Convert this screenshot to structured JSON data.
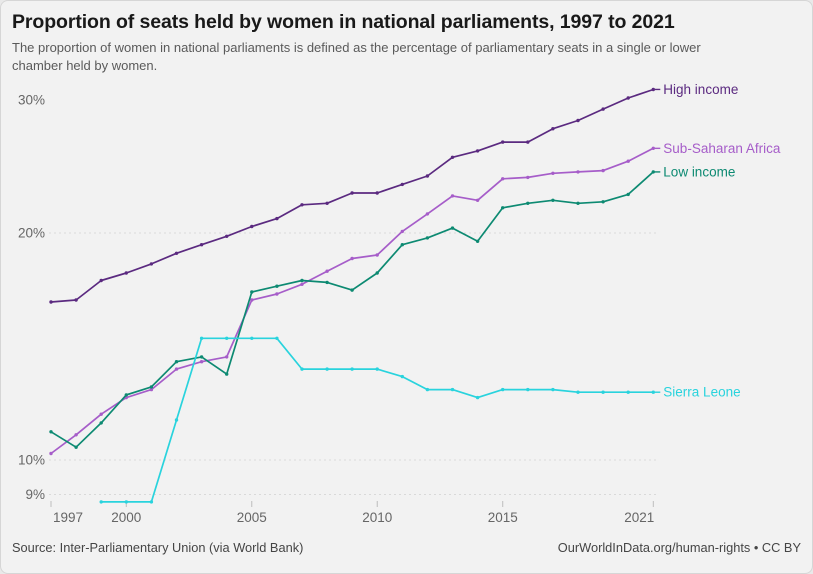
{
  "header": {
    "title": "Proportion of seats held by women in national parliaments, 1997 to 2021",
    "subtitle": "The proportion of women in national parliaments is defined as the percentage of parliamentary seats in a single or lower chamber held by women."
  },
  "footer": {
    "source": "Source: Inter-Parliamentary Union (via World Bank)",
    "attribution": "OurWorldInData.org/human-rights • CC BY"
  },
  "colors": {
    "high_income": "#5b2a80",
    "sub_saharan_africa": "#a65dc9",
    "low_income": "#0d8a72",
    "sierra_leone": "#29d3dd",
    "gridline": "#d9d9d9",
    "axis_text": "#666666",
    "tick_mark": "#bdbdbd"
  },
  "chart_data": {
    "type": "line",
    "title": "Proportion of seats held by women in national parliaments, 1997 to 2021",
    "x": [
      1997,
      1998,
      1999,
      2000,
      2001,
      2002,
      2003,
      2004,
      2005,
      2006,
      2007,
      2008,
      2009,
      2010,
      2011,
      2012,
      2013,
      2014,
      2015,
      2016,
      2017,
      2018,
      2019,
      2020,
      2021
    ],
    "series": [
      {
        "name": "High income",
        "color": "#5b2a80",
        "values": [
          16.2,
          16.3,
          17.3,
          17.7,
          18.2,
          18.8,
          19.3,
          19.8,
          20.4,
          20.9,
          21.8,
          21.9,
          22.6,
          22.6,
          23.2,
          23.8,
          25.2,
          25.7,
          26.4,
          26.4,
          27.5,
          28.2,
          29.2,
          30.2,
          31.0
        ]
      },
      {
        "name": "Sub-Saharan Africa",
        "color": "#a65dc9",
        "values": [
          10.2,
          10.8,
          11.5,
          12.1,
          12.4,
          13.2,
          13.5,
          13.7,
          16.3,
          16.6,
          17.1,
          17.8,
          18.5,
          18.7,
          20.1,
          21.2,
          22.4,
          22.1,
          23.6,
          23.7,
          24.0,
          24.1,
          24.2,
          24.9,
          25.9
        ]
      },
      {
        "name": "Low income",
        "color": "#0d8a72",
        "values": [
          10.9,
          10.4,
          11.2,
          12.2,
          12.5,
          13.5,
          13.7,
          13.0,
          16.7,
          17.0,
          17.3,
          17.2,
          16.8,
          17.7,
          19.3,
          19.7,
          20.3,
          19.5,
          21.6,
          21.9,
          22.1,
          21.9,
          22.0,
          22.5,
          24.1
        ]
      },
      {
        "name": "Sierra Leone",
        "color": "#29d3dd",
        "values": [
          null,
          null,
          8.8,
          8.8,
          8.8,
          11.3,
          14.5,
          14.5,
          14.5,
          14.5,
          13.2,
          13.2,
          13.2,
          13.2,
          12.9,
          12.4,
          12.4,
          12.1,
          12.4,
          12.4,
          12.4,
          12.3,
          12.3,
          12.3,
          12.3
        ]
      }
    ],
    "y_axis": {
      "scale": "log",
      "unit": "%",
      "ticks": [
        9,
        10,
        20,
        30
      ],
      "gridline_ticks": [
        9,
        10,
        20
      ],
      "range": [
        8.4,
        31.5
      ]
    },
    "x_axis": {
      "ticks": [
        1997,
        2000,
        2005,
        2010,
        2015,
        2021
      ],
      "range": [
        1997,
        2021
      ]
    },
    "legend_position": "right-of-line-ends",
    "grid": "dashed-horizontal"
  }
}
